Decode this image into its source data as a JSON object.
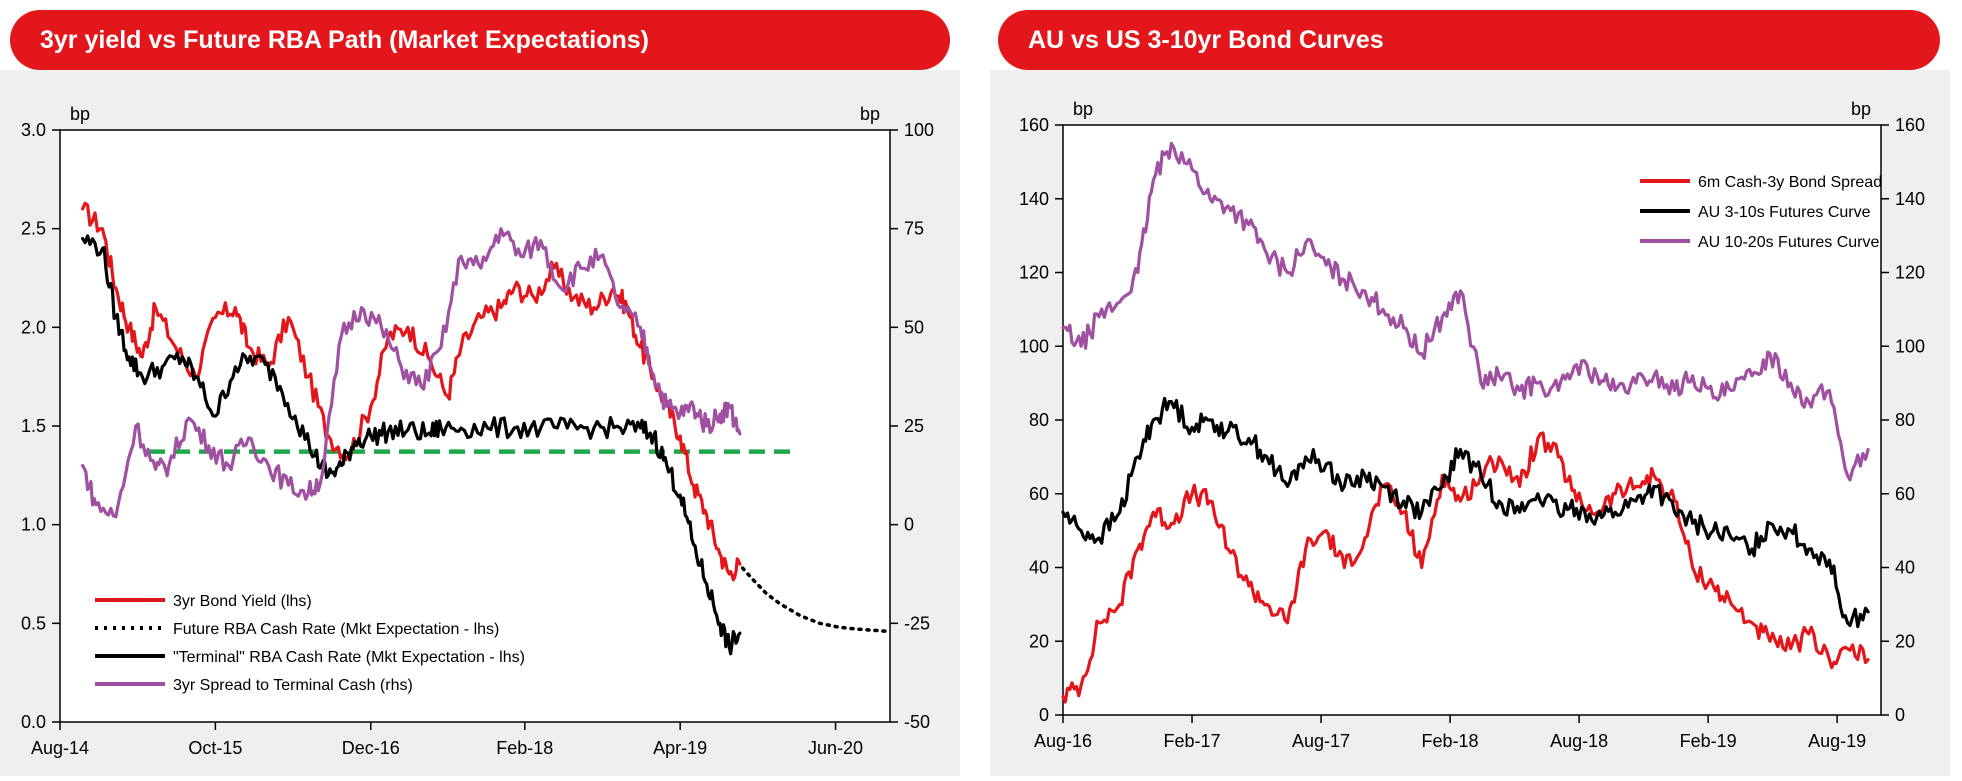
{
  "charts": [
    {
      "header": "3yr yield vs Future RBA Path (Market Expectations)",
      "unit_left": "bp",
      "unit_right": "bp",
      "legend": [
        {
          "label": "3yr Bond Yield (lhs)",
          "color": "#e3171b",
          "style": "solid"
        },
        {
          "label": "Future RBA Cash Rate (Mkt Expectation - lhs)",
          "color": "#000000",
          "style": "dotted"
        },
        {
          "label": "\"Terminal\" RBA Cash Rate (Mkt Expectation - lhs)",
          "color": "#000000",
          "style": "solid"
        },
        {
          "label": "3yr Spread to Terminal Cash (rhs)",
          "color": "#a050a0",
          "style": "solid"
        }
      ]
    },
    {
      "header": "AU vs US 3-10yr Bond Curves",
      "unit_left": "bp",
      "unit_right": "bp",
      "legend": [
        {
          "label": "6m Cash-3y Bond Spread",
          "color": "#e3171b",
          "style": "solid"
        },
        {
          "label": "AU 3-10s Futures Curve",
          "color": "#000000",
          "style": "solid"
        },
        {
          "label": "AU  10-20s Futures Curve",
          "color": "#a050a0",
          "style": "solid"
        }
      ]
    }
  ],
  "chart_data": [
    {
      "type": "line",
      "title": "3yr yield vs Future RBA Path (Market Expectations)",
      "x_tick_labels": [
        "Aug-14",
        "Oct-15",
        "Dec-16",
        "Feb-18",
        "Apr-19",
        "Jun-20"
      ],
      "x_tick_dates": [
        2014.58,
        2015.75,
        2016.92,
        2018.08,
        2019.25,
        2020.42
      ],
      "xlim": [
        2014.58,
        2020.83
      ],
      "ylim_left": [
        0.0,
        3.0
      ],
      "yticks_left": [
        0.0,
        0.5,
        1.0,
        1.5,
        2.0,
        2.5,
        3.0
      ],
      "ytick_labels_left": [
        "0.0",
        "0.5",
        "1.0",
        "1.5",
        "2.0",
        "2.5",
        "3.0"
      ],
      "ylim_right": [
        -50,
        100
      ],
      "yticks_right": [
        -50,
        -25,
        0,
        25,
        50,
        75,
        100
      ],
      "ytick_labels_right": [
        "-50",
        "-25",
        "0",
        "25",
        "50",
        "75",
        "100"
      ],
      "grid": false,
      "legend_position": "bottom-left",
      "reference_line": {
        "name": "dashed level",
        "value": 1.37,
        "x_start": 2015.25,
        "x_end": 2020.08,
        "color": "#1ea84a",
        "axis": "left"
      },
      "series": [
        {
          "name": "3yr Bond Yield (lhs)",
          "axis": "left",
          "color": "#e3171b",
          "style": "solid",
          "x": [
            2014.75,
            2014.9,
            2015.0,
            2015.1,
            2015.2,
            2015.3,
            2015.45,
            2015.6,
            2015.75,
            2015.9,
            2016.0,
            2016.15,
            2016.3,
            2016.45,
            2016.6,
            2016.75,
            2016.92,
            2017.05,
            2017.2,
            2017.35,
            2017.5,
            2017.6,
            2017.75,
            2017.9,
            2018.0,
            2018.15,
            2018.3,
            2018.45,
            2018.6,
            2018.75,
            2018.85,
            2018.95,
            2019.05,
            2019.15,
            2019.25,
            2019.35,
            2019.45,
            2019.55,
            2019.62,
            2019.7
          ],
          "values": [
            2.6,
            2.5,
            2.2,
            2.0,
            1.85,
            2.1,
            1.9,
            1.75,
            2.05,
            2.1,
            1.9,
            1.8,
            2.05,
            1.75,
            1.45,
            1.35,
            1.6,
            1.95,
            2.0,
            1.85,
            1.65,
            1.9,
            2.05,
            2.1,
            2.2,
            2.15,
            2.3,
            2.15,
            2.1,
            2.2,
            2.1,
            1.9,
            1.75,
            1.6,
            1.45,
            1.2,
            1.05,
            0.85,
            0.75,
            0.8
          ]
        },
        {
          "name": "Future RBA Cash Rate (Mkt Expectation - lhs)",
          "axis": "left",
          "color": "#000000",
          "style": "dotted",
          "x": [
            2019.72,
            2019.8,
            2019.9,
            2020.0,
            2020.15,
            2020.3,
            2020.45,
            2020.6,
            2020.8
          ],
          "values": [
            0.78,
            0.72,
            0.65,
            0.6,
            0.54,
            0.5,
            0.48,
            0.47,
            0.46
          ]
        },
        {
          "name": "\"Terminal\" RBA Cash Rate (Mkt Expectation - lhs)",
          "axis": "left",
          "color": "#000000",
          "style": "solid",
          "x": [
            2014.75,
            2014.9,
            2015.0,
            2015.1,
            2015.2,
            2015.35,
            2015.5,
            2015.6,
            2015.75,
            2015.9,
            2016.05,
            2016.2,
            2016.35,
            2016.5,
            2016.6,
            2016.7,
            2016.8,
            2016.92,
            2017.05,
            2017.2,
            2017.35,
            2017.45,
            2017.6,
            2017.8,
            2018.0,
            2018.2,
            2018.4,
            2018.6,
            2018.8,
            2018.95,
            2019.05,
            2019.15,
            2019.25,
            2019.35,
            2019.45,
            2019.55,
            2019.62,
            2019.7
          ],
          "values": [
            2.45,
            2.4,
            2.05,
            1.85,
            1.75,
            1.8,
            1.85,
            1.75,
            1.55,
            1.8,
            1.85,
            1.75,
            1.55,
            1.35,
            1.25,
            1.3,
            1.42,
            1.45,
            1.47,
            1.48,
            1.46,
            1.49,
            1.49,
            1.49,
            1.49,
            1.49,
            1.49,
            1.49,
            1.49,
            1.49,
            1.45,
            1.3,
            1.15,
            0.9,
            0.7,
            0.5,
            0.38,
            0.45
          ]
        },
        {
          "name": "3yr Spread to Terminal Cash (rhs)",
          "axis": "right",
          "color": "#a050a0",
          "style": "solid",
          "x": [
            2014.75,
            2014.85,
            2015.0,
            2015.15,
            2015.3,
            2015.4,
            2015.55,
            2015.7,
            2015.85,
            2016.0,
            2016.15,
            2016.3,
            2016.45,
            2016.55,
            2016.7,
            2016.85,
            2017.0,
            2017.15,
            2017.3,
            2017.45,
            2017.6,
            2017.75,
            2017.9,
            2018.05,
            2018.2,
            2018.35,
            2018.5,
            2018.65,
            2018.8,
            2018.95,
            2019.05,
            2019.15,
            2019.25,
            2019.35,
            2019.45,
            2019.55,
            2019.62,
            2019.7
          ],
          "values": [
            15,
            5,
            2,
            25,
            14,
            15,
            27,
            20,
            15,
            22,
            15,
            10,
            8,
            12,
            48,
            55,
            50,
            40,
            35,
            45,
            68,
            65,
            75,
            68,
            72,
            60,
            65,
            68,
            55,
            50,
            38,
            30,
            28,
            30,
            25,
            28,
            30,
            23
          ]
        }
      ]
    },
    {
      "type": "line",
      "title": "AU vs US 3-10yr Bond Curves",
      "x_tick_labels": [
        "Aug-16",
        "Feb-17",
        "Aug-17",
        "Feb-18",
        "Aug-18",
        "Feb-19",
        "Aug-19"
      ],
      "x_tick_dates": [
        2016.58,
        2017.08,
        2017.58,
        2018.08,
        2018.58,
        2019.08,
        2019.58
      ],
      "xlim": [
        2016.58,
        2019.75
      ],
      "ylim_left": [
        0,
        160
      ],
      "yticks_left": [
        0,
        20,
        40,
        60,
        80,
        100,
        120,
        140,
        160
      ],
      "ytick_labels_left": [
        "0",
        "20",
        "40",
        "60",
        "80",
        "100",
        "120",
        "140",
        "160"
      ],
      "ylim_right": [
        0,
        160
      ],
      "yticks_right": [
        0,
        20,
        40,
        60,
        80,
        100,
        120,
        140,
        160
      ],
      "ytick_labels_right": [
        "0",
        "20",
        "40",
        "60",
        "80",
        "100",
        "120",
        "140",
        "160"
      ],
      "grid": false,
      "legend_position": "top-right",
      "series": [
        {
          "name": "6m Cash-3y Bond Spread",
          "axis": "left",
          "color": "#e3171b",
          "style": "solid",
          "x": [
            2016.58,
            2016.65,
            2016.72,
            2016.8,
            2016.87,
            2016.93,
            2017.0,
            2017.08,
            2017.15,
            2017.22,
            2017.3,
            2017.37,
            2017.45,
            2017.52,
            2017.6,
            2017.67,
            2017.75,
            2017.82,
            2017.9,
            2017.97,
            2018.05,
            2018.12,
            2018.2,
            2018.27,
            2018.35,
            2018.42,
            2018.5,
            2018.57,
            2018.65,
            2018.72,
            2018.8,
            2018.87,
            2018.95,
            2019.02,
            2019.1,
            2019.17,
            2019.25,
            2019.32,
            2019.4,
            2019.47,
            2019.55,
            2019.62,
            2019.7
          ],
          "values": [
            5,
            8,
            25,
            30,
            45,
            55,
            52,
            60,
            58,
            45,
            35,
            30,
            25,
            45,
            50,
            40,
            48,
            62,
            55,
            40,
            65,
            58,
            65,
            70,
            62,
            75,
            70,
            58,
            55,
            60,
            62,
            65,
            58,
            40,
            35,
            30,
            25,
            20,
            18,
            22,
            15,
            18,
            15
          ]
        },
        {
          "name": "AU 3-10s Futures Curve",
          "axis": "left",
          "color": "#000000",
          "style": "solid",
          "x": [
            2016.58,
            2016.65,
            2016.72,
            2016.8,
            2016.87,
            2016.93,
            2017.0,
            2017.08,
            2017.15,
            2017.22,
            2017.3,
            2017.37,
            2017.45,
            2017.52,
            2017.6,
            2017.67,
            2017.75,
            2017.82,
            2017.9,
            2017.97,
            2018.05,
            2018.12,
            2018.2,
            2018.27,
            2018.35,
            2018.42,
            2018.5,
            2018.57,
            2018.65,
            2018.72,
            2018.8,
            2018.87,
            2018.95,
            2019.02,
            2019.1,
            2019.17,
            2019.25,
            2019.32,
            2019.4,
            2019.47,
            2019.55,
            2019.62,
            2019.7
          ],
          "values": [
            55,
            50,
            48,
            55,
            70,
            80,
            85,
            78,
            80,
            77,
            75,
            70,
            62,
            70,
            68,
            62,
            65,
            62,
            58,
            55,
            62,
            72,
            65,
            58,
            55,
            60,
            55,
            56,
            54,
            55,
            58,
            62,
            55,
            52,
            50,
            48,
            45,
            52,
            50,
            45,
            42,
            25,
            28
          ]
        },
        {
          "name": "AU  10-20s Futures Curve",
          "axis": "left",
          "color": "#a050a0",
          "style": "solid",
          "x": [
            2016.58,
            2016.65,
            2016.72,
            2016.8,
            2016.87,
            2016.93,
            2017.0,
            2017.08,
            2017.15,
            2017.22,
            2017.3,
            2017.37,
            2017.45,
            2017.52,
            2017.6,
            2017.67,
            2017.75,
            2017.82,
            2017.9,
            2017.97,
            2018.05,
            2018.12,
            2018.2,
            2018.27,
            2018.35,
            2018.42,
            2018.5,
            2018.57,
            2018.65,
            2018.72,
            2018.8,
            2018.87,
            2018.95,
            2019.02,
            2019.1,
            2019.17,
            2019.25,
            2019.32,
            2019.4,
            2019.47,
            2019.55,
            2019.62,
            2019.7
          ],
          "values": [
            105,
            100,
            108,
            112,
            120,
            145,
            155,
            148,
            140,
            138,
            133,
            125,
            120,
            128,
            122,
            118,
            115,
            110,
            105,
            98,
            108,
            115,
            90,
            92,
            88,
            90,
            88,
            95,
            92,
            88,
            90,
            92,
            88,
            92,
            86,
            88,
            92,
            98,
            90,
            85,
            88,
            65,
            72
          ]
        }
      ]
    }
  ]
}
